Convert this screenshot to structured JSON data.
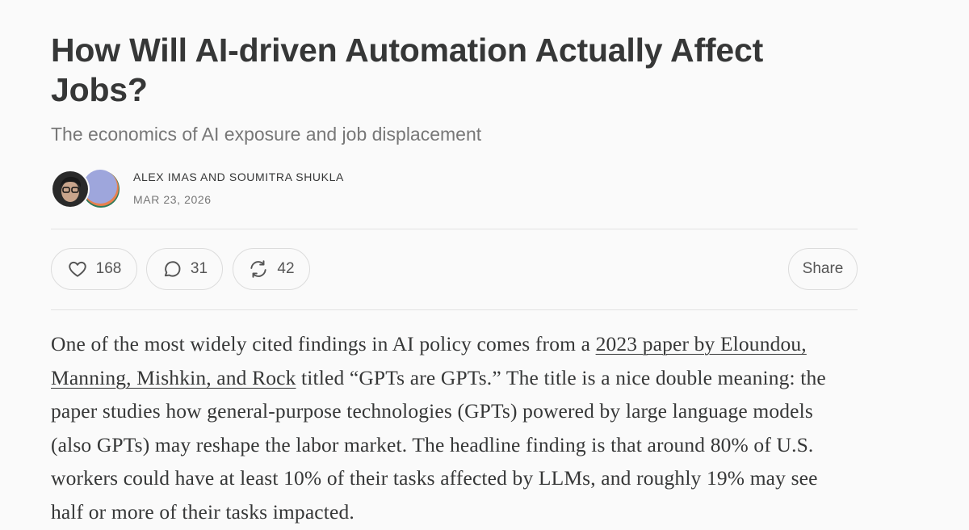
{
  "header": {
    "title": "How Will AI-driven Automation Actually Affect Jobs?",
    "subtitle": "The economics of AI exposure and job displacement",
    "authors": "ALEX IMAS AND SOUMITRA SHUKLA",
    "date": "MAR 23, 2026"
  },
  "actions": {
    "likes": 168,
    "comments": 31,
    "restacks": 42,
    "share": "Share"
  },
  "body": {
    "paragraph": [
      {
        "text": "One of the most widely cited findings in AI policy comes from a "
      },
      {
        "text": "2023 paper by Eloundou, Manning, Mishkin, and Rock",
        "link": true
      },
      {
        "text": " titled “GPTs are GPTs.” The title is a nice double meaning: the paper studies how general-purpose technologies (GPTs) powered by large language models (also GPTs) may reshape the labor market. The headline finding is that around 80% of U.S. workers could have at least 10% of their tasks affected by LLMs, and roughly 19% may see half or more of their tasks impacted."
      }
    ]
  }
}
